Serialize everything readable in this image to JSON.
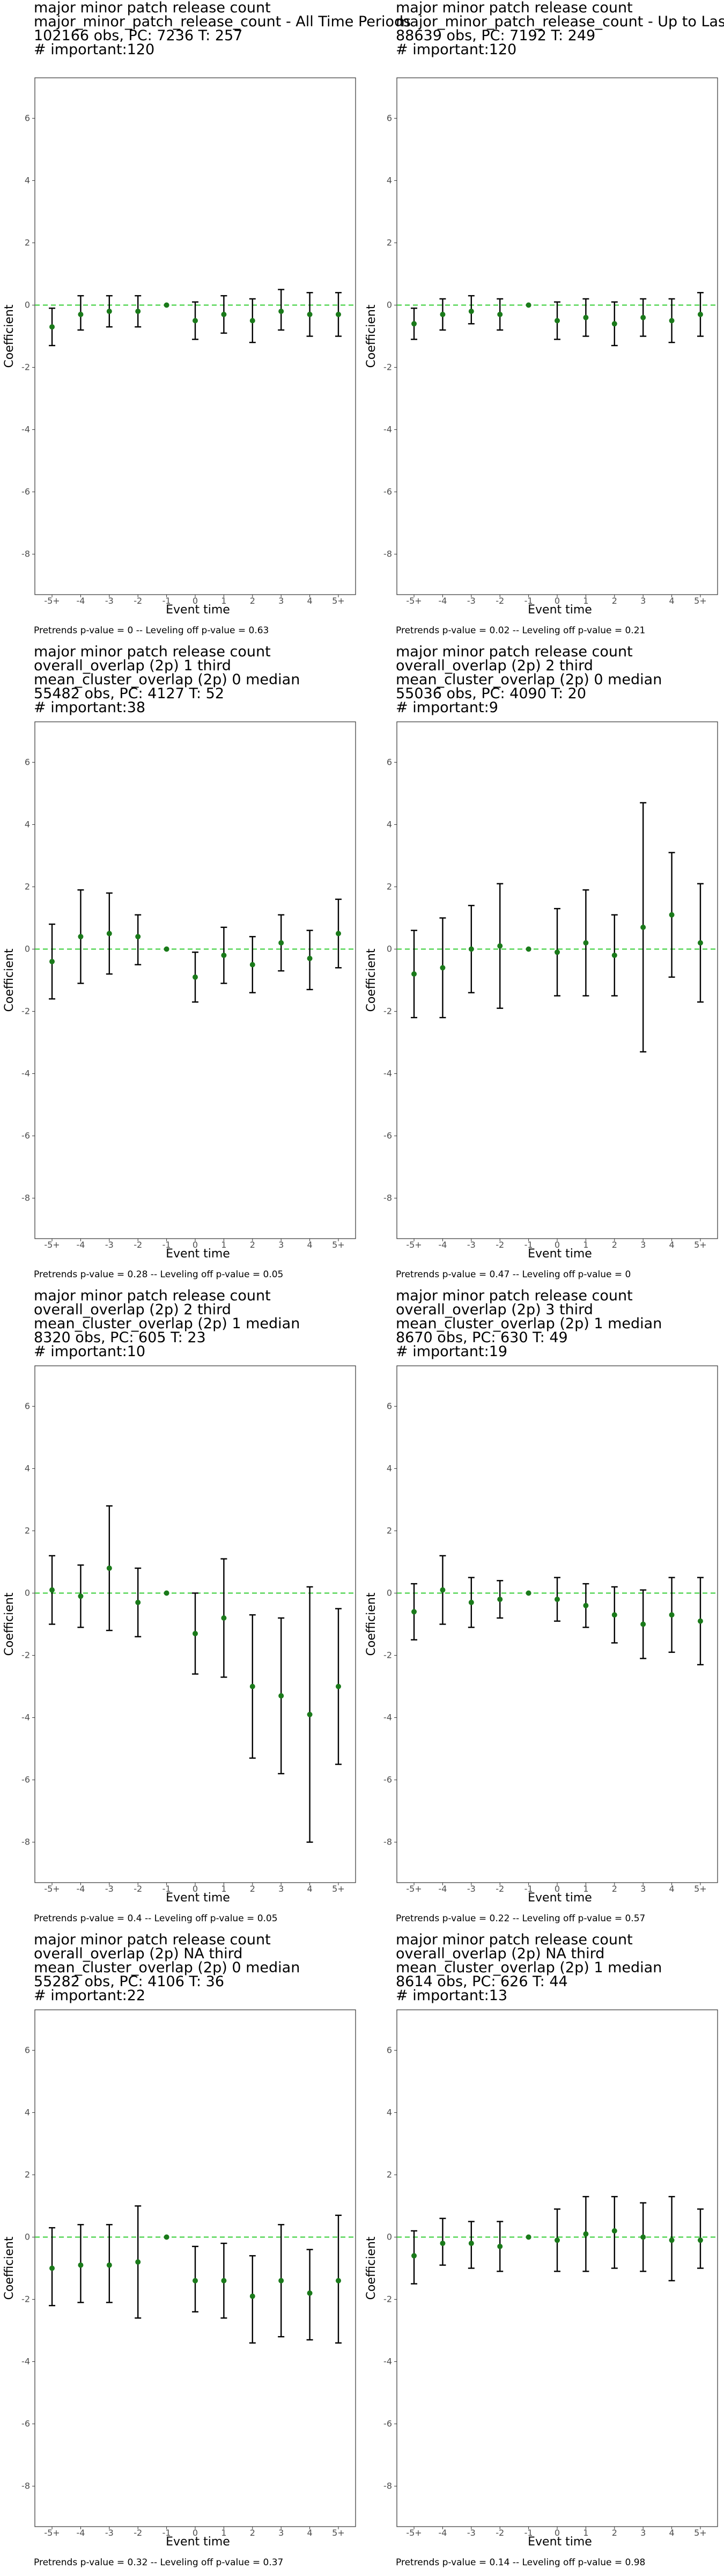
{
  "colors": {
    "point": "#1a7a1a",
    "zero_line": "#33cc33",
    "bar": "#000000",
    "frame": "#333333"
  },
  "chart_data": [
    {
      "type": "scatter",
      "title_lines": [
        "major minor patch release count",
        "major_minor_patch_release_count - All Time Periods",
        "102166 obs, PC: 7236 T: 257",
        "# important:120"
      ],
      "xlabel": "Event time",
      "ylabel": "Coefficient",
      "categories": [
        "-5+",
        "-4",
        "-3",
        "-2",
        "-1",
        "0",
        "1",
        "2",
        "3",
        "4",
        "5+"
      ],
      "ylim": [
        -9.3,
        7.3
      ],
      "yticks": [
        -8,
        -6,
        -4,
        -2,
        0,
        2,
        4,
        6
      ],
      "estimate": [
        -0.7,
        -0.3,
        -0.2,
        -0.2,
        0,
        -0.5,
        -0.3,
        -0.5,
        -0.2,
        -0.3,
        -0.3
      ],
      "lower": [
        -1.3,
        -0.8,
        -0.7,
        -0.7,
        0,
        -1.1,
        -0.9,
        -1.2,
        -0.8,
        -1.0,
        -1.0
      ],
      "upper": [
        -0.1,
        0.3,
        0.3,
        0.3,
        0,
        0.1,
        0.3,
        0.2,
        0.5,
        0.4,
        0.4
      ],
      "caption": "Pretrends p-value = 0 -- Leveling off p-value = 0.63"
    },
    {
      "type": "scatter",
      "title_lines": [
        "major minor patch release count",
        "major_minor_patch_release_count - Up to Last Active P",
        "88639 obs, PC: 7192 T: 249",
        "# important:120"
      ],
      "xlabel": "Event time",
      "ylabel": "Coefficient",
      "categories": [
        "-5+",
        "-4",
        "-3",
        "-2",
        "-1",
        "0",
        "1",
        "2",
        "3",
        "4",
        "5+"
      ],
      "ylim": [
        -9.3,
        7.3
      ],
      "yticks": [
        -8,
        -6,
        -4,
        -2,
        0,
        2,
        4,
        6
      ],
      "estimate": [
        -0.6,
        -0.3,
        -0.2,
        -0.3,
        0,
        -0.5,
        -0.4,
        -0.6,
        -0.4,
        -0.5,
        -0.3
      ],
      "lower": [
        -1.1,
        -0.8,
        -0.6,
        -0.8,
        0,
        -1.1,
        -1.0,
        -1.3,
        -1.0,
        -1.2,
        -1.0
      ],
      "upper": [
        -0.1,
        0.2,
        0.3,
        0.2,
        0,
        0.1,
        0.2,
        0.1,
        0.2,
        0.2,
        0.4
      ],
      "caption": "Pretrends p-value = 0.02 -- Leveling off p-value = 0.21"
    },
    {
      "type": "scatter",
      "title_lines": [
        "major minor patch release count",
        "overall_overlap (2p) 1 third",
        "mean_cluster_overlap (2p) 0 median",
        "55482 obs, PC: 4127 T: 52",
        "# important:38"
      ],
      "xlabel": "Event time",
      "ylabel": "Coefficient",
      "categories": [
        "-5+",
        "-4",
        "-3",
        "-2",
        "-1",
        "0",
        "1",
        "2",
        "3",
        "4",
        "5+"
      ],
      "ylim": [
        -9.3,
        7.3
      ],
      "yticks": [
        -8,
        -6,
        -4,
        -2,
        0,
        2,
        4,
        6
      ],
      "estimate": [
        -0.4,
        0.4,
        0.5,
        0.4,
        0,
        -0.9,
        -0.2,
        -0.5,
        0.2,
        -0.3,
        0.5
      ],
      "lower": [
        -1.6,
        -1.1,
        -0.8,
        -0.5,
        0,
        -1.7,
        -1.1,
        -1.4,
        -0.7,
        -1.3,
        -0.6
      ],
      "upper": [
        0.8,
        1.9,
        1.8,
        1.1,
        0,
        -0.1,
        0.7,
        0.4,
        1.1,
        0.6,
        1.6
      ],
      "caption": "Pretrends p-value = 0.28 -- Leveling off p-value = 0.05"
    },
    {
      "type": "scatter",
      "title_lines": [
        "major minor patch release count",
        "overall_overlap (2p) 2 third",
        "mean_cluster_overlap (2p) 0 median",
        "55036 obs, PC: 4090 T: 20",
        "# important:9"
      ],
      "xlabel": "Event time",
      "ylabel": "Coefficient",
      "categories": [
        "-5+",
        "-4",
        "-3",
        "-2",
        "-1",
        "0",
        "1",
        "2",
        "3",
        "4",
        "5+"
      ],
      "ylim": [
        -9.3,
        7.3
      ],
      "yticks": [
        -8,
        -6,
        -4,
        -2,
        0,
        2,
        4,
        6
      ],
      "estimate": [
        -0.8,
        -0.6,
        0.0,
        0.1,
        0,
        -0.1,
        0.2,
        -0.2,
        0.7,
        1.1,
        0.2
      ],
      "lower": [
        -2.2,
        -2.2,
        -1.4,
        -1.9,
        0,
        -1.5,
        -1.5,
        -1.5,
        -3.3,
        -0.9,
        -1.7
      ],
      "upper": [
        0.6,
        1.0,
        1.4,
        2.1,
        0,
        1.3,
        1.9,
        1.1,
        4.7,
        3.1,
        2.1
      ],
      "caption": "Pretrends p-value = 0.47 -- Leveling off p-value = 0"
    },
    {
      "type": "scatter",
      "title_lines": [
        "major minor patch release count",
        "overall_overlap (2p) 2 third",
        "mean_cluster_overlap (2p) 1 median",
        "8320 obs, PC: 605 T: 23",
        "# important:10"
      ],
      "xlabel": "Event time",
      "ylabel": "Coefficient",
      "categories": [
        "-5+",
        "-4",
        "-3",
        "-2",
        "-1",
        "0",
        "1",
        "2",
        "3",
        "4",
        "5+"
      ],
      "ylim": [
        -9.3,
        7.3
      ],
      "yticks": [
        -8,
        -6,
        -4,
        -2,
        0,
        2,
        4,
        6
      ],
      "estimate": [
        0.1,
        -0.1,
        0.8,
        -0.3,
        0,
        -1.3,
        -0.8,
        -3.0,
        -3.3,
        -3.9,
        -3.0
      ],
      "lower": [
        -1.0,
        -1.1,
        -1.2,
        -1.4,
        0,
        -2.6,
        -2.7,
        -5.3,
        -5.8,
        -8.0,
        -5.5
      ],
      "upper": [
        1.2,
        0.9,
        2.8,
        0.8,
        0,
        0.0,
        1.1,
        -0.7,
        -0.8,
        0.2,
        -0.5
      ],
      "caption": "Pretrends p-value = 0.4 -- Leveling off p-value = 0.05"
    },
    {
      "type": "scatter",
      "title_lines": [
        "major minor patch release count",
        "overall_overlap (2p) 3 third",
        "mean_cluster_overlap (2p) 1 median",
        "8670 obs, PC: 630 T: 49",
        "# important:19"
      ],
      "xlabel": "Event time",
      "ylabel": "Coefficient",
      "categories": [
        "-5+",
        "-4",
        "-3",
        "-2",
        "-1",
        "0",
        "1",
        "2",
        "3",
        "4",
        "5+"
      ],
      "ylim": [
        -9.3,
        7.3
      ],
      "yticks": [
        -8,
        -6,
        -4,
        -2,
        0,
        2,
        4,
        6
      ],
      "estimate": [
        -0.6,
        0.1,
        -0.3,
        -0.2,
        0,
        -0.2,
        -0.4,
        -0.7,
        -1.0,
        -0.7,
        -0.9
      ],
      "lower": [
        -1.5,
        -1.0,
        -1.1,
        -0.8,
        0,
        -0.9,
        -1.1,
        -1.6,
        -2.1,
        -1.9,
        -2.3
      ],
      "upper": [
        0.3,
        1.2,
        0.5,
        0.4,
        0,
        0.5,
        0.3,
        0.2,
        0.1,
        0.5,
        0.5
      ],
      "caption": "Pretrends p-value = 0.22 -- Leveling off p-value = 0.57"
    },
    {
      "type": "scatter",
      "title_lines": [
        "major minor patch release count",
        "overall_overlap (2p) NA third",
        "mean_cluster_overlap (2p) 0 median",
        "55282 obs, PC: 4106 T: 36",
        "# important:22"
      ],
      "xlabel": "Event time",
      "ylabel": "Coefficient",
      "categories": [
        "-5+",
        "-4",
        "-3",
        "-2",
        "-1",
        "0",
        "1",
        "2",
        "3",
        "4",
        "5+"
      ],
      "ylim": [
        -9.3,
        7.3
      ],
      "yticks": [
        -8,
        -6,
        -4,
        -2,
        0,
        2,
        4,
        6
      ],
      "estimate": [
        -1.0,
        -0.9,
        -0.9,
        -0.8,
        0,
        -1.4,
        -1.4,
        -1.9,
        -1.4,
        -1.8,
        -1.4
      ],
      "lower": [
        -2.2,
        -2.1,
        -2.1,
        -2.6,
        0,
        -2.4,
        -2.6,
        -3.4,
        -3.2,
        -3.3,
        -3.4
      ],
      "upper": [
        0.3,
        0.4,
        0.4,
        1.0,
        0,
        -0.3,
        -0.2,
        -0.6,
        0.4,
        -0.4,
        0.7
      ],
      "caption": "Pretrends p-value = 0.32 -- Leveling off p-value = 0.37"
    },
    {
      "type": "scatter",
      "title_lines": [
        "major minor patch release count",
        "overall_overlap (2p) NA third",
        "mean_cluster_overlap (2p) 1 median",
        "8614 obs, PC: 626 T: 44",
        "# important:13"
      ],
      "xlabel": "Event time",
      "ylabel": "Coefficient",
      "categories": [
        "-5+",
        "-4",
        "-3",
        "-2",
        "-1",
        "0",
        "1",
        "2",
        "3",
        "4",
        "5+"
      ],
      "ylim": [
        -9.3,
        7.3
      ],
      "yticks": [
        -8,
        -6,
        -4,
        -2,
        0,
        2,
        4,
        6
      ],
      "estimate": [
        -0.6,
        -0.2,
        -0.2,
        -0.3,
        0,
        -0.1,
        0.1,
        0.2,
        0.0,
        -0.1,
        -0.1
      ],
      "lower": [
        -1.5,
        -0.9,
        -1.0,
        -1.1,
        0,
        -1.1,
        -1.1,
        -1.0,
        -1.1,
        -1.4,
        -1.0
      ],
      "upper": [
        0.2,
        0.6,
        0.5,
        0.5,
        0,
        0.9,
        1.3,
        1.3,
        1.1,
        1.3,
        0.9
      ],
      "caption": "Pretrends p-value = 0.14 -- Leveling off p-value = 0.98"
    }
  ]
}
